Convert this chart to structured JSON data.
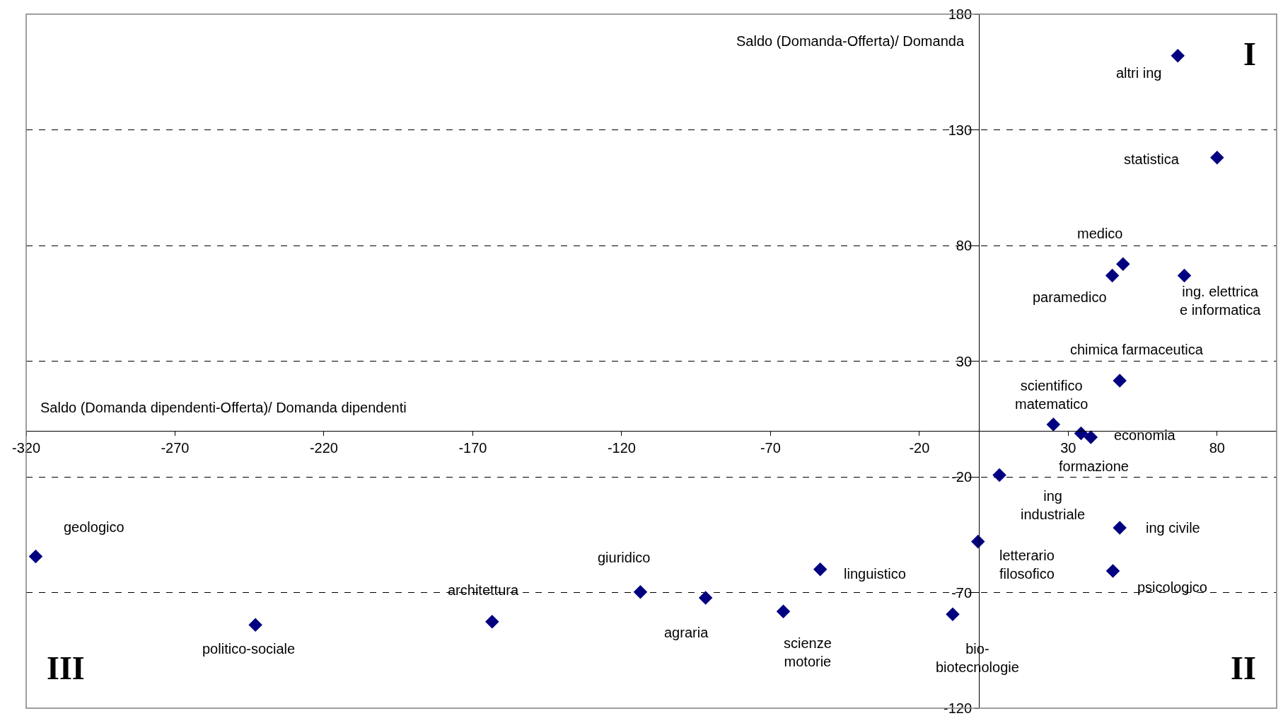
{
  "chart_data": {
    "type": "scatter",
    "xlabel": "Saldo (Domanda dipendenti-Offerta)/ Domanda dipendenti",
    "ylabel": "Saldo (Domanda-Offerta)/ Domanda",
    "x": [
      66.8,
      80,
      48.4,
      44.8,
      69,
      47.3,
      25,
      34.3,
      37.6,
      6.9,
      47.3,
      -0.3,
      45,
      -316.8,
      -243,
      -163.5,
      -113.7,
      -91.8,
      -65.7,
      -53.3,
      -8.8
    ],
    "series": [
      {
        "color": "#000080",
        "values": [
          162,
          118,
          72,
          67,
          67,
          21.6,
          2.6,
          -1.2,
          -2.9,
          -19.2,
          -42,
          -48,
          -60.7,
          -54.4,
          -84,
          -82.6,
          -69.8,
          -72.3,
          -78.2,
          -60,
          -79.4
        ]
      }
    ],
    "annotations": [
      {
        "text": "altri ing",
        "x": 66.8,
        "y": 162
      },
      {
        "text": "statistica",
        "x": 80,
        "y": 118
      },
      {
        "text": "medico",
        "x": 48.4,
        "y": 72
      },
      {
        "text": "paramedico",
        "x": 44.8,
        "y": 67
      },
      {
        "text": "ing. elettrica\ne informatica",
        "x": 69,
        "y": 67
      },
      {
        "text": "chimica farmaceutica",
        "x": 47.3,
        "y": 21.6
      },
      {
        "text": "scientifico\nmatematico",
        "x": 25,
        "y": 2.6
      },
      {
        "text": "formazione",
        "x": 34.3,
        "y": -1.2
      },
      {
        "text": "economia",
        "x": 37.6,
        "y": -2.9
      },
      {
        "text": "ing\nindustriale",
        "x": 6.9,
        "y": -19.2
      },
      {
        "text": "ing civile",
        "x": 47.3,
        "y": -42
      },
      {
        "text": "letterario\nfilosofico",
        "x": -0.3,
        "y": -48
      },
      {
        "text": "psicologico",
        "x": 45,
        "y": -60.7
      },
      {
        "text": "geologico",
        "x": -316.8,
        "y": -54.4
      },
      {
        "text": "politico-sociale",
        "x": -243,
        "y": -84
      },
      {
        "text": "architettura",
        "x": -163.5,
        "y": -82.6
      },
      {
        "text": "giuridico",
        "x": -113.7,
        "y": -69.8
      },
      {
        "text": "agraria",
        "x": -91.8,
        "y": -72.3
      },
      {
        "text": "scienze\nmotorie",
        "x": -65.7,
        "y": -78.2
      },
      {
        "text": "linguistico",
        "x": -53.3,
        "y": -60
      },
      {
        "text": "bio-\nbiotecnologie",
        "x": -8.8,
        "y": -79.4
      },
      "I",
      "II",
      "III"
    ],
    "xlim": [
      -320,
      100
    ],
    "xticks": [
      -320,
      -270,
      -220,
      -170,
      -120,
      -70,
      -20,
      30,
      80
    ],
    "ylim": [
      -120,
      180
    ],
    "yticks": [
      -120,
      -70,
      -20,
      30,
      80,
      130,
      180
    ],
    "grid": "y",
    "marker": "diamond"
  }
}
